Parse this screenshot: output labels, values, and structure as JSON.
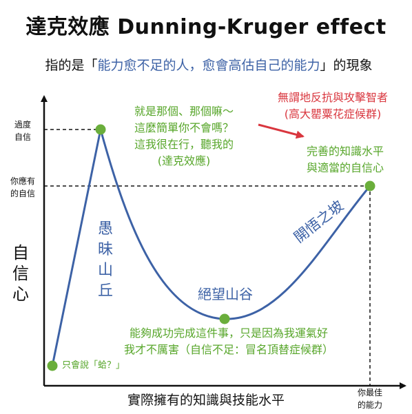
{
  "title": "達克效應 Dunning-Kruger effect",
  "subtitle": {
    "prefix": "指的是「",
    "highlight": "能力愈不足的人，愈會高估自己的能力",
    "suffix": "」的現象"
  },
  "y_axis": {
    "label": "自\n信\n心",
    "ticks": [
      "過度\n自信",
      "你應有\n的自信"
    ]
  },
  "x_axis": {
    "label": "實際擁有的知識與技能水平",
    "end_label": "你最佳\n的能力"
  },
  "annotations": {
    "start": "只會說「蛤？」",
    "peak": "就是那個、那個嘛～\n這麼簡單你不會嗎？\n這我很在行，聽我的\n(達克效應)",
    "peak_label": "愚\n昧\n山\n丘",
    "valley_label": "絕望山谷",
    "valley": "能夠成功完成這件事，只是因為我運氣好\n我才不厲害（自信不足：冒名頂替症候群）",
    "slope_label": "開悟之坡",
    "end": "完善的知識水平\n與適當的自信心",
    "impostor": "無謂地反抗與攻擊智者\n(高大罌粟花症候群)"
  },
  "colors": {
    "curve": "#3d62a6",
    "points": "#6aae3b",
    "green_text": "#57a62a",
    "red_text": "#d9363e",
    "axis": "#111111"
  }
}
